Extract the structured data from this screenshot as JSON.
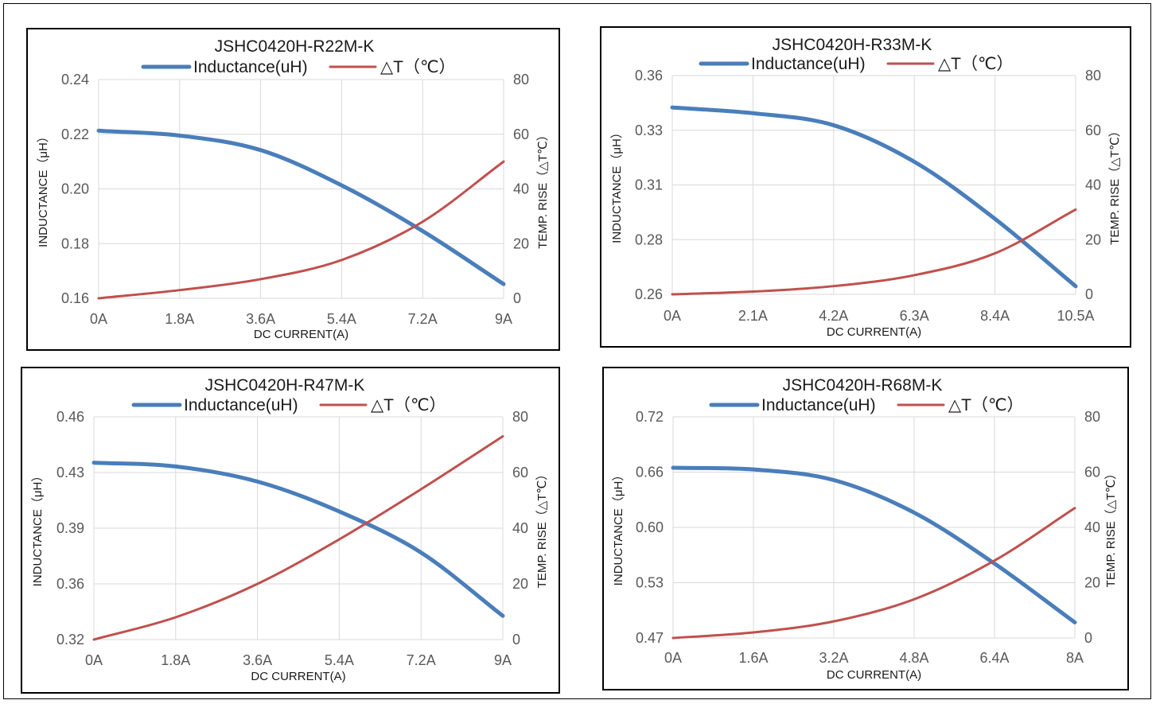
{
  "legend": {
    "inductance": "Inductance(uH)",
    "temp": "△T（℃）"
  },
  "colors": {
    "inductance": "#4a7ebb",
    "temp": "#c0504d",
    "grid": "#d9d9d9"
  },
  "chart_data": [
    {
      "type": "line",
      "title": "JSHC0420H-R22M-K",
      "xlabel": "DC CURRENT(A)",
      "ylabel": "INDUCTANCE（μH）",
      "y2label": "TEMP. RISE（△T℃）",
      "x_ticks": [
        "0A",
        "1.8A",
        "3.6A",
        "5.4A",
        "7.2A",
        "9A"
      ],
      "y_ticks": [
        "0.24",
        "0.22",
        "0.20",
        "0.18",
        "0.16"
      ],
      "y2_ticks": [
        "80",
        "60",
        "40",
        "20",
        "0"
      ],
      "xlim": [
        0,
        9
      ],
      "ylim": [
        0.16,
        0.24
      ],
      "y2lim": [
        0,
        80
      ],
      "series": [
        {
          "name": "Inductance(uH)",
          "axis": "left",
          "x": [
            0,
            1.8,
            3.6,
            5.4,
            7.2,
            9
          ],
          "values": [
            0.2213,
            0.2195,
            0.2142,
            0.2013,
            0.1846,
            0.1652
          ]
        },
        {
          "name": "△T（℃）",
          "axis": "right",
          "x": [
            0,
            1.8,
            3.6,
            5.4,
            7.2,
            9
          ],
          "values": [
            0,
            3,
            7,
            14,
            28,
            50
          ]
        }
      ],
      "grid": true,
      "legend_position": "top"
    },
    {
      "type": "line",
      "title": "JSHC0420H-R33M-K",
      "xlabel": "DC CURRENT(A)",
      "ylabel": "INDUCTANCE（μH）",
      "y2label": "TEMP. RISE（△T℃）",
      "x_ticks": [
        "0A",
        "2.1A",
        "4.2A",
        "6.3A",
        "8.4A",
        "10.5A"
      ],
      "y_ticks": [
        "0.36",
        "0.33",
        "0.31",
        "0.28",
        "0.26"
      ],
      "y2_ticks": [
        "80",
        "60",
        "40",
        "20",
        "0"
      ],
      "xlim": [
        0,
        10.5
      ],
      "ylim": [
        0.26,
        0.36
      ],
      "y2lim": [
        0,
        80
      ],
      "series": [
        {
          "name": "Inductance(uH)",
          "axis": "left",
          "x": [
            0,
            2.1,
            4.2,
            6.3,
            8.4,
            10.5
          ],
          "values": [
            0.3454,
            0.3428,
            0.3373,
            0.3206,
            0.2945,
            0.2637
          ]
        },
        {
          "name": "△T（℃）",
          "axis": "right",
          "x": [
            0,
            2.1,
            4.2,
            6.3,
            8.4,
            10.5
          ],
          "values": [
            0,
            1,
            3,
            7,
            15,
            31
          ]
        }
      ],
      "grid": true,
      "legend_position": "top"
    },
    {
      "type": "line",
      "title": "JSHC0420H-R47M-K",
      "xlabel": "DC CURRENT(A)",
      "ylabel": "INDUCTANCE（μH）",
      "y2label": "TEMP. RISE（△T℃）",
      "x_ticks": [
        "0A",
        "1.8A",
        "3.6A",
        "5.4A",
        "7.2A",
        "9A"
      ],
      "y_ticks": [
        "0.46",
        "0.43",
        "0.39",
        "0.36",
        "0.32"
      ],
      "y2_ticks": [
        "80",
        "60",
        "40",
        "20",
        "0"
      ],
      "xlim": [
        0,
        9
      ],
      "ylim": [
        0.32,
        0.46
      ],
      "y2lim": [
        0,
        80
      ],
      "series": [
        {
          "name": "Inductance(uH)",
          "axis": "left",
          "x": [
            0,
            1.8,
            3.6,
            5.4,
            7.2,
            9
          ],
          "values": [
            0.4312,
            0.4288,
            0.4193,
            0.4005,
            0.3747,
            0.3349
          ]
        },
        {
          "name": "△T（℃）",
          "axis": "right",
          "x": [
            0,
            1.8,
            3.6,
            5.4,
            7.2,
            9
          ],
          "values": [
            0,
            8,
            20,
            36,
            54,
            73
          ]
        }
      ],
      "grid": true,
      "legend_position": "top"
    },
    {
      "type": "line",
      "title": "JSHC0420H-R68M-K",
      "xlabel": "DC CURRENT(A)",
      "ylabel": "INDUCTANCE（μH）",
      "y2label": "TEMP. RISE（△T℃）",
      "x_ticks": [
        "0A",
        "1.6A",
        "3.2A",
        "4.8A",
        "6.4A",
        "8A"
      ],
      "y_ticks": [
        "0.72",
        "0.66",
        "0.60",
        "0.53",
        "0.47"
      ],
      "y2_ticks": [
        "80",
        "60",
        "40",
        "20",
        "0"
      ],
      "xlim": [
        0,
        8
      ],
      "ylim": [
        0.47,
        0.72
      ],
      "y2lim": [
        0,
        80
      ],
      "series": [
        {
          "name": "Inductance(uH)",
          "axis": "left",
          "x": [
            0,
            1.6,
            3.2,
            4.8,
            6.4,
            8
          ],
          "values": [
            0.6624,
            0.6605,
            0.6485,
            0.6117,
            0.5541,
            0.4876
          ]
        },
        {
          "name": "△T（℃）",
          "axis": "right",
          "x": [
            0,
            1.6,
            3.2,
            4.8,
            6.4,
            8
          ],
          "values": [
            0,
            2,
            6,
            14,
            28,
            47
          ]
        }
      ],
      "grid": true,
      "legend_position": "top"
    }
  ]
}
